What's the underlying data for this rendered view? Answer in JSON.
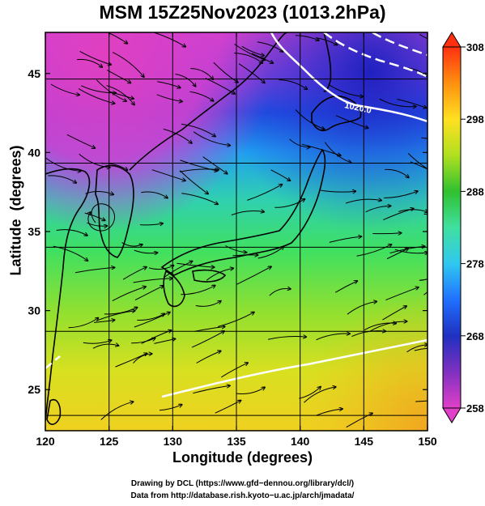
{
  "title": "MSM 15Z25Nov2023 (1013.2hPa)",
  "axes": {
    "xlabel": "Longitude (degrees)",
    "ylabel": "Latitude  (degrees)",
    "x_ticks": [
      120,
      125,
      130,
      135,
      140,
      145,
      150
    ],
    "y_ticks": [
      25,
      30,
      35,
      40,
      45
    ],
    "xlim": [
      120,
      150
    ],
    "ylim": [
      22.4,
      47.6
    ]
  },
  "colorbar": {
    "ticks": [
      258,
      268,
      278,
      288,
      298,
      308
    ],
    "range": [
      258,
      308
    ],
    "colors_low_to_high": [
      "#e040c8",
      "#2030c0",
      "#2060ff",
      "#30c0ff",
      "#40e0a0",
      "#30c030",
      "#b0e020",
      "#ffe020",
      "#ff9010",
      "#ff3010"
    ],
    "extend_arrows": true
  },
  "contour": {
    "label": "1020.0",
    "color": "#ffffff"
  },
  "credits": {
    "line1": "Drawing by DCL (https://www.gfd−dennou.org/library/dcl/)",
    "line2": "Data from http://database.rish.kyoto−u.ac.jp/arch/jmadata/"
  },
  "chart_data": {
    "type": "heatmap",
    "title": "MSM 15Z25Nov2023 (1013.2hPa)",
    "xlabel": "Longitude (degrees)",
    "ylabel": "Latitude  (degrees)",
    "xlim": [
      120,
      150
    ],
    "ylim": [
      22.4,
      47.6
    ],
    "colorbar_range": [
      258,
      308
    ],
    "grid": true,
    "vector_overlay": "streamlines",
    "contour_labels": [
      "1020.0"
    ]
  }
}
